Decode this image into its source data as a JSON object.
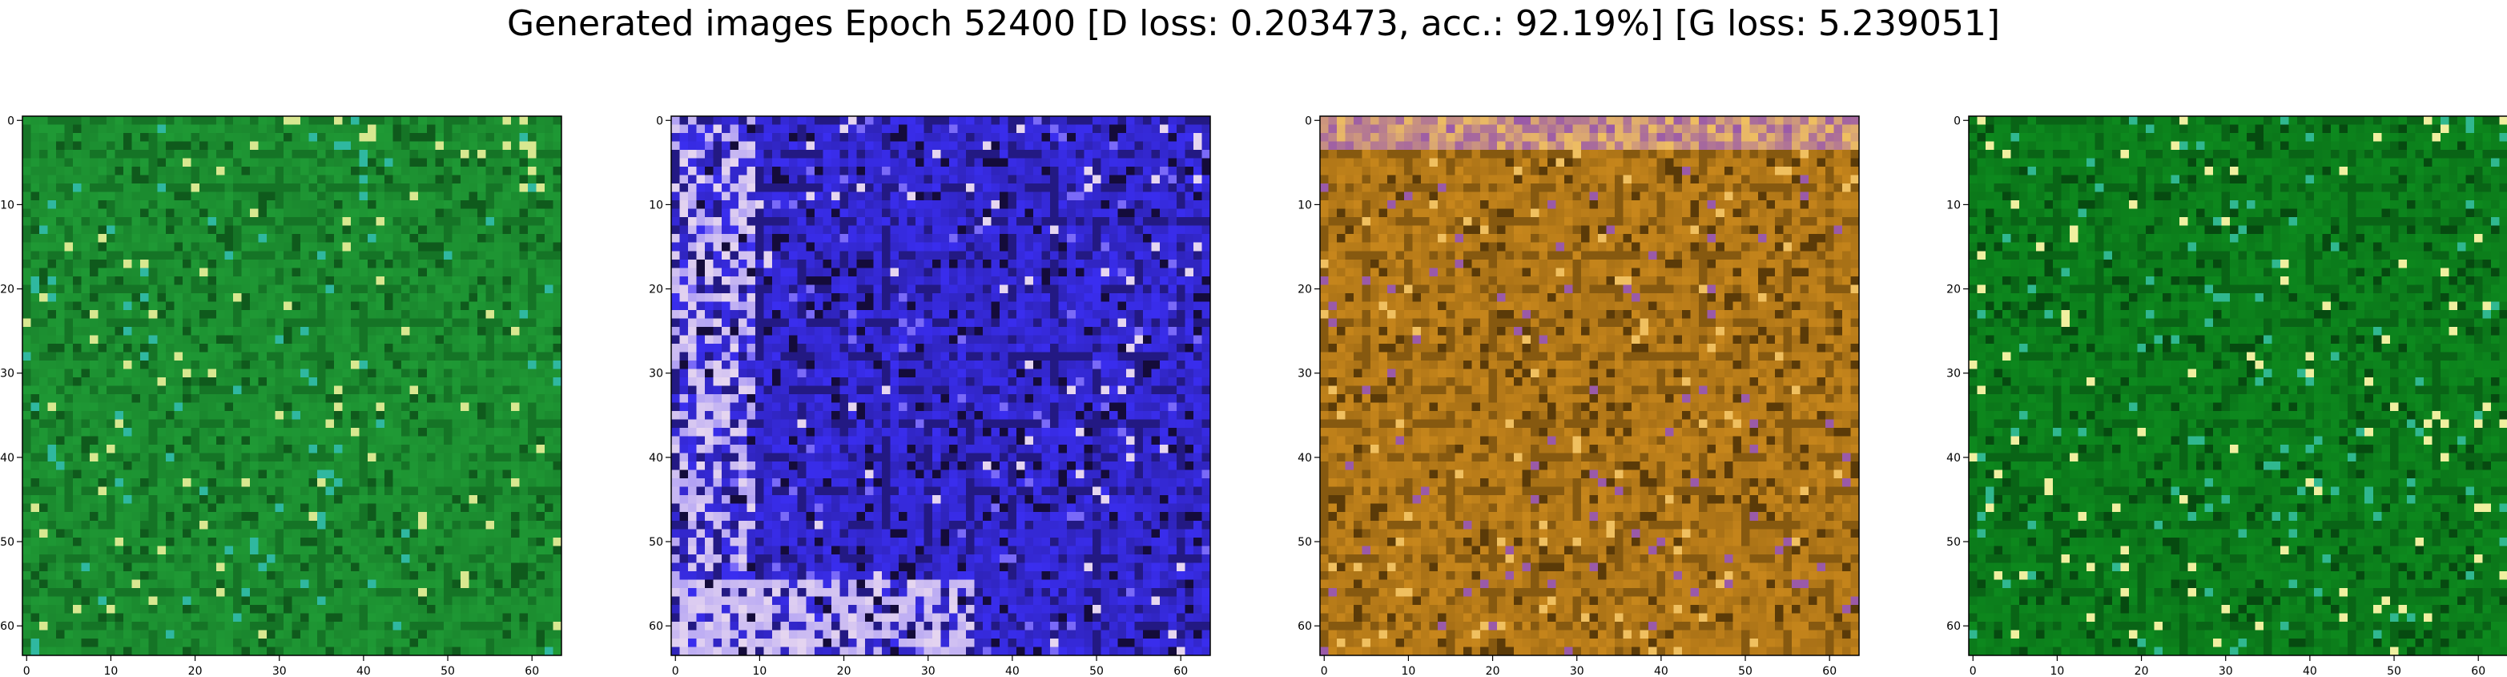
{
  "title": "Generated images Epoch 52400 [D loss: 0.203473, acc.: 92.19%] [G loss: 5.239051]",
  "chart_data": [
    {
      "type": "heatmap",
      "description_role": "generated image 1",
      "xlim": [
        -0.5,
        63.5
      ],
      "ylim": [
        63.5,
        -0.5
      ],
      "xticks": [
        0,
        10,
        20,
        30,
        40,
        50,
        60
      ],
      "yticks": [
        0,
        10,
        20,
        30,
        40,
        50,
        60
      ],
      "palette": {
        "base": "#1f9a35",
        "dark": "#0f5a1c",
        "light": "#d8e890",
        "accent": "#2fb8a0"
      }
    },
    {
      "type": "heatmap",
      "description_role": "generated image 2",
      "xlim": [
        -0.5,
        63.5
      ],
      "ylim": [
        63.5,
        -0.5
      ],
      "xticks": [
        0,
        10,
        20,
        30,
        40,
        50,
        60
      ],
      "yticks": [
        0,
        10,
        20,
        30,
        40,
        50,
        60
      ],
      "palette": {
        "base": "#3a2ef0",
        "dark": "#140b3a",
        "light": "#e6d6f0",
        "accent": "#7a6af8"
      }
    },
    {
      "type": "heatmap",
      "description_role": "generated image 3",
      "xlim": [
        -0.5,
        63.5
      ],
      "ylim": [
        63.5,
        -0.5
      ],
      "xticks": [
        0,
        10,
        20,
        30,
        40,
        50,
        60
      ],
      "yticks": [
        0,
        10,
        20,
        30,
        40,
        50,
        60
      ],
      "palette": {
        "base": "#c8871c",
        "dark": "#5a3a08",
        "light": "#f0c060",
        "accent": "#9a5aa8"
      }
    },
    {
      "type": "heatmap",
      "description_role": "generated image 4",
      "xlim": [
        -0.5,
        63.5
      ],
      "ylim": [
        63.5,
        -0.5
      ],
      "xticks": [
        0,
        10,
        20,
        30,
        40,
        50,
        60
      ],
      "yticks": [
        0,
        10,
        20,
        30,
        40,
        50,
        60
      ],
      "palette": {
        "base": "#0d8a1e",
        "dark": "#064a10",
        "light": "#f0f0a0",
        "accent": "#30b890"
      }
    }
  ]
}
